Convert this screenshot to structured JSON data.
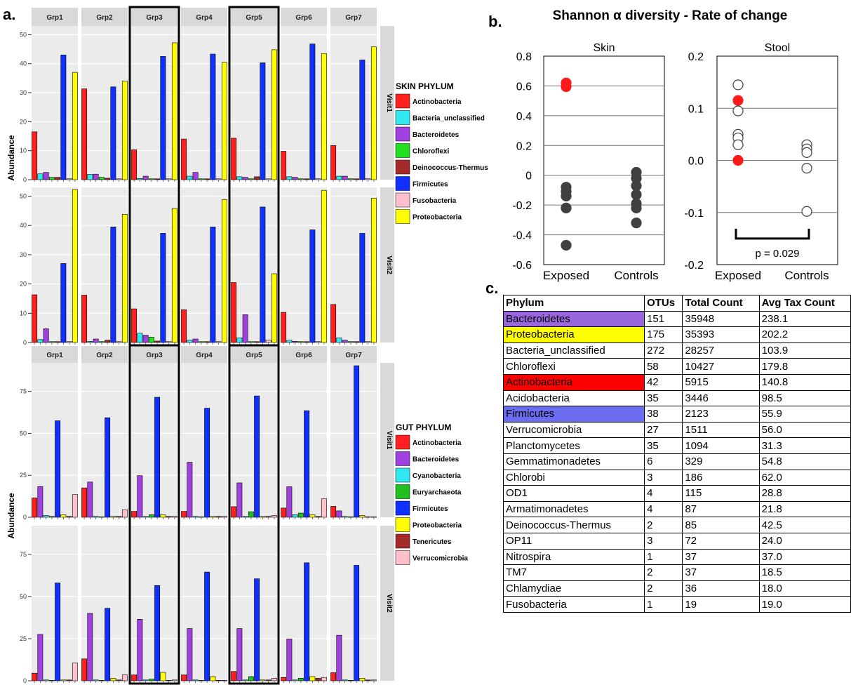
{
  "labels": {
    "a": "a.",
    "b": "b.",
    "c": "c."
  },
  "facet_groups": [
    "Grp1",
    "Grp2",
    "Grp3",
    "Grp4",
    "Grp5",
    "Grp6",
    "Grp7"
  ],
  "highlighted_groups": [
    "Grp3",
    "Grp5"
  ],
  "colors": {
    "Actinobacteria": "#ff2020",
    "Bacteria_unclassified": "#30e8f0",
    "Bacteroidetes": "#a040e0",
    "Chloroflexi": "#20e020",
    "Deinococcus-Thermus": "#a52a2a",
    "Firmicutes": "#1030ff",
    "Fusobacteria": "#ffc0cb",
    "Proteobacteria": "#ffff00",
    "Cyanobacteria": "#30e8f0",
    "Euryarchaeota": "#20c020",
    "Tenericutes": "#a52a2a",
    "Verrucomicrobia": "#ffc0cb",
    "table_Bacteroidetes": "#9966dd",
    "table_Proteobacteria": "#ffff00",
    "table_Actinobacteria": "#ff0000",
    "table_Firmicutes": "#6c6cf0"
  },
  "chart_data": [
    {
      "type": "bar",
      "panel": "a",
      "subtitle": "SKIN",
      "ylabel": "Abundance",
      "ylim": [
        0,
        53
      ],
      "yticks": [
        0,
        10,
        20,
        30,
        40,
        50
      ],
      "legend_title": "SKIN PHYLUM",
      "series_names": [
        "Actinobacteria",
        "Bacteria_unclassified",
        "Bacteroidetes",
        "Chloroflexi",
        "Deinococcus-Thermus",
        "Firmicutes",
        "Fusobacteria",
        "Proteobacteria"
      ],
      "rows": [
        {
          "strip": "Visit1",
          "values": [
            [
              16.5,
              2,
              2.5,
              0.8,
              0.8,
              43,
              0.3,
              37
            ],
            [
              31.3,
              1.8,
              1.9,
              0.8,
              0.5,
              32,
              0.3,
              34
            ],
            [
              10.3,
              0.4,
              1.2,
              0.3,
              0.3,
              42.5,
              0.3,
              47.2
            ],
            [
              14,
              1.2,
              2.5,
              0.3,
              0.3,
              43.3,
              0.3,
              40.5
            ],
            [
              14.3,
              1,
              0.8,
              0.3,
              1,
              40.3,
              0.3,
              44.8
            ],
            [
              9.8,
              1,
              0.8,
              0.3,
              0.3,
              46.8,
              0.3,
              43.5
            ],
            [
              11.8,
              1.2,
              1.2,
              0.3,
              0.3,
              41.3,
              0.3,
              45.8
            ]
          ]
        },
        {
          "strip": "Visit2",
          "values": [
            [
              16.3,
              1,
              4.7,
              0.3,
              0.3,
              27,
              0.3,
              52.3
            ],
            [
              16.2,
              0.4,
              1.2,
              0.3,
              0.8,
              39.5,
              0.3,
              43.8
            ],
            [
              11.5,
              3.2,
              2.5,
              1.8,
              0.5,
              37.3,
              0.3,
              45.8
            ],
            [
              11.2,
              0.8,
              1.2,
              0.3,
              0.3,
              39.5,
              0.3,
              48.8
            ],
            [
              20.5,
              1.6,
              9.5,
              0.3,
              0.3,
              46.3,
              0.8,
              23.5
            ],
            [
              10.3,
              0.8,
              0.4,
              0.3,
              0.3,
              38.5,
              0.3,
              52
            ],
            [
              13,
              1.6,
              0.8,
              0.3,
              0.3,
              37.3,
              0.3,
              49.3
            ]
          ]
        }
      ]
    },
    {
      "type": "bar",
      "panel": "a",
      "subtitle": "GUT",
      "ylabel": "Abundance",
      "ylim": [
        0,
        92
      ],
      "yticks": [
        0,
        25,
        50,
        75
      ],
      "legend_title": "GUT PHYLUM",
      "series_names": [
        "Actinobacteria",
        "Bacteroidetes",
        "Cyanobacteria",
        "Euryarchaeota",
        "Firmicutes",
        "Proteobacteria",
        "Tenericutes",
        "Verrucomicrobia"
      ],
      "rows": [
        {
          "strip": "Visit1",
          "values": [
            [
              11.5,
              18.3,
              1,
              0.5,
              57.5,
              1.5,
              0.5,
              13.5
            ],
            [
              17.5,
              21,
              0.5,
              0.3,
              59.3,
              0.5,
              0.5,
              4.5
            ],
            [
              3.5,
              24.8,
              0.5,
              1.5,
              71.5,
              1.5,
              0.5,
              0.5
            ],
            [
              3.5,
              32.8,
              0.5,
              0.3,
              65,
              0.5,
              0.5,
              0.5
            ],
            [
              6.3,
              20.5,
              0.5,
              3.3,
              72.3,
              0.5,
              0.5,
              1
            ],
            [
              5.5,
              18.2,
              1.5,
              2.5,
              63.5,
              1.5,
              0.5,
              11
            ],
            [
              6.5,
              3.8,
              0.5,
              0.3,
              90.3,
              1,
              0.3,
              0.3
            ]
          ]
        },
        {
          "strip": "Visit2",
          "values": [
            [
              4.5,
              27.5,
              0.5,
              0.3,
              58,
              0.5,
              0.5,
              10.5
            ],
            [
              13,
              40,
              0.5,
              0.3,
              43,
              1.5,
              0.5,
              3.5
            ],
            [
              3.5,
              36.5,
              0.5,
              1,
              56.5,
              5,
              0.3,
              0.5
            ],
            [
              3.5,
              31,
              0.5,
              0.3,
              64.5,
              2.5,
              0.3,
              0.3
            ],
            [
              5.5,
              31,
              0.5,
              2.5,
              60.5,
              0.5,
              0.5,
              1.5
            ],
            [
              2,
              24.8,
              0.5,
              1.5,
              70,
              2.5,
              1.5,
              2
            ],
            [
              4.8,
              27,
              0.5,
              0.3,
              68.5,
              1.5,
              0.5,
              0.5
            ]
          ]
        }
      ]
    },
    {
      "type": "scatter",
      "panel": "b",
      "title": "Shannon α diversity - Rate of change",
      "subtitle": "Skin",
      "categories": [
        "Exposed",
        "Controls"
      ],
      "ylim": [
        -0.6,
        0.8
      ],
      "yticks": [
        "0.8",
        "0.6",
        "0.4",
        "0.2",
        "0",
        "-0.2",
        "-0.4",
        "-0.6"
      ],
      "points": [
        {
          "group": "Exposed",
          "y": 0.62,
          "color": "red"
        },
        {
          "group": "Exposed",
          "y": 0.595,
          "color": "red"
        },
        {
          "group": "Exposed",
          "y": -0.08,
          "color": "dark"
        },
        {
          "group": "Exposed",
          "y": -0.11,
          "color": "dark"
        },
        {
          "group": "Exposed",
          "y": -0.14,
          "color": "dark"
        },
        {
          "group": "Exposed",
          "y": -0.22,
          "color": "dark"
        },
        {
          "group": "Exposed",
          "y": -0.47,
          "color": "dark"
        },
        {
          "group": "Controls",
          "y": 0.02,
          "color": "dark"
        },
        {
          "group": "Controls",
          "y": -0.02,
          "color": "dark"
        },
        {
          "group": "Controls",
          "y": -0.07,
          "color": "dark"
        },
        {
          "group": "Controls",
          "y": -0.13,
          "color": "dark"
        },
        {
          "group": "Controls",
          "y": -0.19,
          "color": "dark"
        },
        {
          "group": "Controls",
          "y": -0.22,
          "color": "dark"
        },
        {
          "group": "Controls",
          "y": -0.32,
          "color": "dark"
        }
      ]
    },
    {
      "type": "scatter",
      "panel": "b",
      "subtitle": "Stool",
      "categories": [
        "Exposed",
        "Controls"
      ],
      "ylim": [
        -0.2,
        0.2
      ],
      "yticks": [
        "0.2",
        "0.1",
        "0.0",
        "-0.1",
        "-0.2"
      ],
      "annotation": "p = 0.029",
      "points": [
        {
          "group": "Exposed",
          "y": 0.145,
          "color": "open"
        },
        {
          "group": "Exposed",
          "y": 0.115,
          "color": "red"
        },
        {
          "group": "Exposed",
          "y": 0.095,
          "color": "open"
        },
        {
          "group": "Exposed",
          "y": 0.05,
          "color": "open"
        },
        {
          "group": "Exposed",
          "y": 0.043,
          "color": "open"
        },
        {
          "group": "Exposed",
          "y": 0.03,
          "color": "open"
        },
        {
          "group": "Exposed",
          "y": 0.0,
          "color": "red"
        },
        {
          "group": "Controls",
          "y": 0.03,
          "color": "open"
        },
        {
          "group": "Controls",
          "y": 0.022,
          "color": "open"
        },
        {
          "group": "Controls",
          "y": 0.015,
          "color": "open"
        },
        {
          "group": "Controls",
          "y": -0.015,
          "color": "open"
        },
        {
          "group": "Controls",
          "y": -0.098,
          "color": "open"
        }
      ]
    },
    {
      "type": "table",
      "panel": "c",
      "columns": [
        "Phylum",
        "OTUs",
        "Total Count",
        "Avg Tax Count"
      ],
      "rows": [
        [
          "Bacteroidetes",
          "151",
          "35948",
          "238.1"
        ],
        [
          "Proteobacteria",
          "175",
          "35393",
          "202.2"
        ],
        [
          "Bacteria_unclassified",
          "272",
          "28257",
          "103.9"
        ],
        [
          "Chloroflexi",
          "58",
          "10427",
          "179.8"
        ],
        [
          "Actinobacteria",
          "42",
          "5915",
          "140.8"
        ],
        [
          "Acidobacteria",
          "35",
          "3446",
          "98.5"
        ],
        [
          "Firmicutes",
          "38",
          "2123",
          "55.9"
        ],
        [
          "Verrucomicrobia",
          "27",
          "1511",
          "56.0"
        ],
        [
          "Planctomycetes",
          "35",
          "1094",
          "31.3"
        ],
        [
          "Gemmatimonadetes",
          "6",
          "329",
          "54.8"
        ],
        [
          "Chlorobi",
          "3",
          "186",
          "62.0"
        ],
        [
          "OD1",
          "4",
          "115",
          "28.8"
        ],
        [
          "Armatimonadetes",
          "4",
          "87",
          "21.8"
        ],
        [
          "Deinococcus-Thermus",
          "2",
          "85",
          "42.5"
        ],
        [
          "OP11",
          "3",
          "72",
          "24.0"
        ],
        [
          "Nitrospira",
          "1",
          "37",
          "37.0"
        ],
        [
          "TM7",
          "2",
          "37",
          "18.5"
        ],
        [
          "Chlamydiae",
          "2",
          "36",
          "18.0"
        ],
        [
          "Fusobacteria",
          "1",
          "19",
          "19.0"
        ]
      ]
    }
  ]
}
